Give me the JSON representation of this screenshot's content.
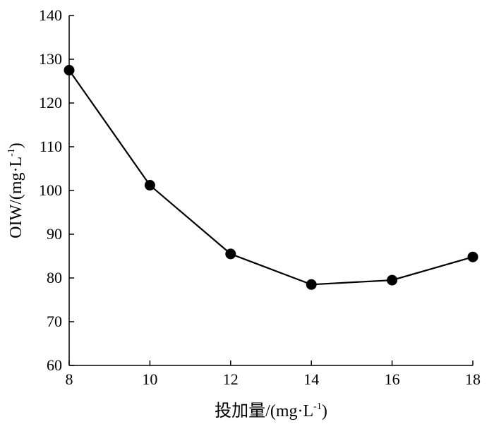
{
  "chart_data": {
    "type": "line",
    "x": [
      8,
      10,
      12,
      14,
      16,
      18
    ],
    "series": [
      {
        "values": [
          127.5,
          101.2,
          85.5,
          78.5,
          79.5,
          84.8
        ],
        "color": "#000000",
        "marker": "filled-circle"
      }
    ],
    "xlabel": {
      "text": "投加量/(mg·L",
      "sup": "-1",
      "close": ")"
    },
    "ylabel": {
      "text": "OIW/(mg·L",
      "sup": "-1",
      "close": ")"
    },
    "xlim": [
      8,
      18
    ],
    "ylim": [
      60,
      140
    ],
    "xticks": [
      8,
      10,
      12,
      14,
      16,
      18
    ],
    "yticks": [
      60,
      70,
      80,
      90,
      100,
      110,
      120,
      130,
      140
    ],
    "grid": false,
    "legend": "none"
  }
}
